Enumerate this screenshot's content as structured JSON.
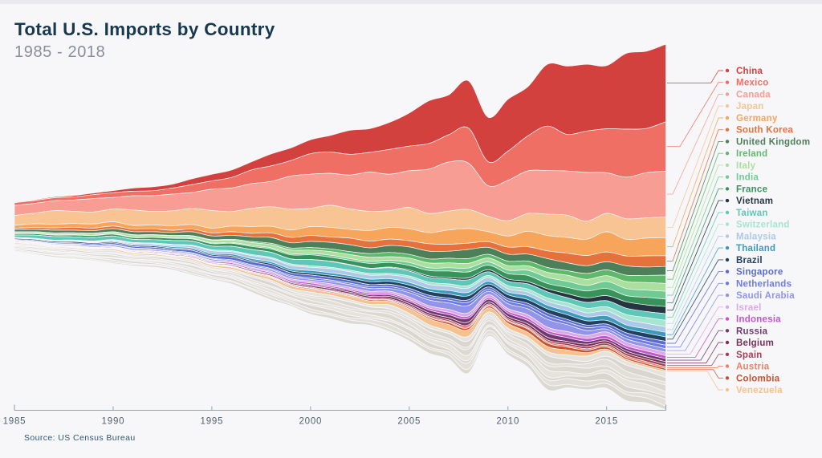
{
  "page": {
    "background": "#f7f7fa",
    "top_strip_color": "#eaeaee"
  },
  "header": {
    "title": "Total U.S. Imports by Country",
    "subtitle": "1985 - 2018"
  },
  "source": {
    "label": "Source: US Census Bureau"
  },
  "chart_data": {
    "type": "area",
    "variant": "streamgraph",
    "title": "Total U.S. Imports by Country",
    "subtitle": "1985 - 2018",
    "legend_position": "right",
    "values_unit": "USD billions (estimated from stream thickness)",
    "x": [
      1985,
      1987,
      1990,
      1993,
      1996,
      2000,
      2004,
      2008,
      2009,
      2012,
      2015,
      2018
    ],
    "x_axis": {
      "ticks": [
        1985,
        1990,
        1995,
        2000,
        2005,
        2010,
        2015
      ],
      "range": [
        1985,
        2018
      ]
    },
    "series": [
      {
        "name": "China",
        "color": "#d2413d",
        "values": [
          3.9,
          6.3,
          15.2,
          31.5,
          51.5,
          100,
          196.7,
          337.8,
          296.4,
          425.6,
          483.2,
          539.7
        ]
      },
      {
        "name": "Mexico",
        "color": "#ef6f64",
        "values": [
          19.1,
          20.3,
          30.2,
          39.9,
          74.1,
          135.9,
          155.9,
          215.9,
          176.5,
          277.7,
          296.4,
          343.8
        ]
      },
      {
        "name": "Canada",
        "color": "#f79d94",
        "values": [
          69.0,
          71.1,
          91.4,
          111.2,
          155.9,
          230.8,
          256.4,
          339.5,
          226.2,
          324.2,
          296.2,
          318.5
        ]
      },
      {
        "name": "Japan",
        "color": "#f8c493",
        "values": [
          68.8,
          84.6,
          89.7,
          107.2,
          115.2,
          146.5,
          129.8,
          139.2,
          95.8,
          146.4,
          131.4,
          142.4
        ]
      },
      {
        "name": "Germany",
        "color": "#f7a55b",
        "values": [
          20.2,
          27.2,
          28.2,
          28.6,
          38.9,
          58.5,
          77.2,
          97.5,
          71.3,
          108.5,
          124.1,
          125.9
        ]
      },
      {
        "name": "South Korea",
        "color": "#e5713d",
        "values": [
          10.0,
          17.2,
          18.5,
          17.1,
          22.7,
          40.3,
          46.2,
          48.1,
          39.2,
          58.9,
          71.8,
          74.3
        ]
      },
      {
        "name": "United Kingdom",
        "color": "#4d7f58",
        "values": [
          14.9,
          17.3,
          20.3,
          21.7,
          28.9,
          43.3,
          46.4,
          58.6,
          47.5,
          55.0,
          57.8,
          60.8
        ]
      },
      {
        "name": "Ireland",
        "color": "#5eba6a",
        "values": [
          1.0,
          1.4,
          2.0,
          2.5,
          4.7,
          16.4,
          27.4,
          31.2,
          28.0,
          33.3,
          39.4,
          57.5
        ]
      },
      {
        "name": "Italy",
        "color": "#abdf9e",
        "values": [
          9.7,
          11.1,
          12.8,
          13.2,
          18.3,
          25.0,
          28.1,
          36.1,
          26.4,
          36.9,
          44.3,
          54.7
        ]
      },
      {
        "name": "India",
        "color": "#6fcb93",
        "values": [
          2.5,
          2.8,
          3.2,
          4.5,
          6.2,
          10.7,
          15.6,
          25.7,
          21.2,
          40.5,
          44.8,
          54.3
        ]
      },
      {
        "name": "France",
        "color": "#38935b",
        "values": [
          9.5,
          10.7,
          13.1,
          15.2,
          18.6,
          29.8,
          31.2,
          44.0,
          34.0,
          41.6,
          47.6,
          52.4
        ]
      },
      {
        "name": "Vietnam",
        "color": "#24363f",
        "values": [
          0,
          0,
          0,
          0,
          0.3,
          0.8,
          5.0,
          12.9,
          12.3,
          20.3,
          38.0,
          49.2
        ]
      },
      {
        "name": "Taiwan",
        "color": "#5ec7b8",
        "values": [
          16.4,
          24.6,
          22.7,
          25.1,
          29.9,
          40.5,
          34.6,
          36.3,
          28.4,
          38.9,
          40.7,
          45.8
        ]
      },
      {
        "name": "Switzerland",
        "color": "#a5e6cf",
        "values": [
          2.7,
          3.7,
          5.0,
          5.7,
          7.3,
          10.2,
          11.6,
          17.8,
          16.0,
          25.2,
          31.2,
          44.0
        ]
      },
      {
        "name": "Malaysia",
        "color": "#adc9e8",
        "values": [
          2.3,
          2.9,
          5.3,
          10.6,
          17.8,
          25.6,
          28.1,
          30.7,
          23.3,
          25.9,
          33.8,
          39.4
        ]
      },
      {
        "name": "Thailand",
        "color": "#3c9bbd",
        "values": [
          1.4,
          2.5,
          5.3,
          8.5,
          11.3,
          16.4,
          17.6,
          23.5,
          19.1,
          26.1,
          28.6,
          31.9
        ]
      },
      {
        "name": "Brazil",
        "color": "#214160",
        "values": [
          7.5,
          7.9,
          7.9,
          7.5,
          8.8,
          13.9,
          21.2,
          30.5,
          20.1,
          32.1,
          27.4,
          31.1
        ]
      },
      {
        "name": "Singapore",
        "color": "#5a6bd1",
        "values": [
          4.3,
          6.4,
          9.8,
          12.8,
          20.3,
          19.2,
          15.4,
          15.9,
          15.7,
          19.1,
          18.2,
          26.8
        ]
      },
      {
        "name": "Netherlands",
        "color": "#6e7be2",
        "values": [
          4.0,
          4.0,
          4.9,
          5.4,
          6.6,
          9.7,
          12.6,
          21.1,
          16.1,
          22.3,
          16.5,
          24.8
        ]
      },
      {
        "name": "Saudi Arabia",
        "color": "#9294e9",
        "values": [
          2.0,
          4.9,
          10.0,
          7.7,
          9.0,
          14.2,
          20.9,
          54.8,
          22.0,
          55.7,
          22.1,
          24.2
        ]
      },
      {
        "name": "Israel",
        "color": "#dca7e9",
        "values": [
          2.2,
          2.6,
          3.2,
          4.4,
          6.4,
          13.0,
          14.5,
          22.3,
          18.7,
          22.2,
          24.5,
          23.7
        ]
      },
      {
        "name": "Indonesia",
        "color": "#c355cd",
        "values": [
          4.5,
          3.4,
          3.3,
          5.4,
          8.2,
          10.4,
          10.8,
          15.8,
          12.9,
          18.0,
          19.9,
          20.9
        ]
      },
      {
        "name": "Russia",
        "color": "#6e3a71",
        "values": [
          0.4,
          0.5,
          0.7,
          1.7,
          3.6,
          7.7,
          11.9,
          26.8,
          18.2,
          29.3,
          16.4,
          20.9
        ]
      },
      {
        "name": "Belgium",
        "color": "#7d3058",
        "values": [
          2.2,
          2.7,
          4.6,
          5.4,
          6.8,
          9.9,
          13.0,
          17.2,
          15.2,
          17.6,
          15.5,
          17.8
        ]
      },
      {
        "name": "Spain",
        "color": "#a33f53",
        "values": [
          2.5,
          2.8,
          3.1,
          3.0,
          4.3,
          5.7,
          7.9,
          11.1,
          7.9,
          11.7,
          14.3,
          17.4
        ]
      },
      {
        "name": "Austria",
        "color": "#f08167",
        "values": [
          0.5,
          0.7,
          1.2,
          1.5,
          2.2,
          3.2,
          5.4,
          9.5,
          6.9,
          10.3,
          11.8,
          12.9
        ]
      },
      {
        "name": "Colombia",
        "color": "#c9522e",
        "values": [
          1.5,
          2.3,
          3.2,
          3.2,
          4.4,
          6.9,
          7.3,
          13.1,
          11.3,
          24.6,
          14.1,
          12.7
        ]
      },
      {
        "name": "Venezuela",
        "color": "#f6c18d",
        "values": [
          6.8,
          5.1,
          9.4,
          8.1,
          13.2,
          18.6,
          24.9,
          51.4,
          28.1,
          38.7,
          15.7,
          11.7
        ]
      },
      {
        "name": "Other",
        "color": "#e0ddd5",
        "in_legend": false,
        "values": [
          55,
          65,
          80,
          88,
          104,
          150,
          172,
          230,
          172,
          238,
          250,
          262
        ]
      }
    ]
  }
}
